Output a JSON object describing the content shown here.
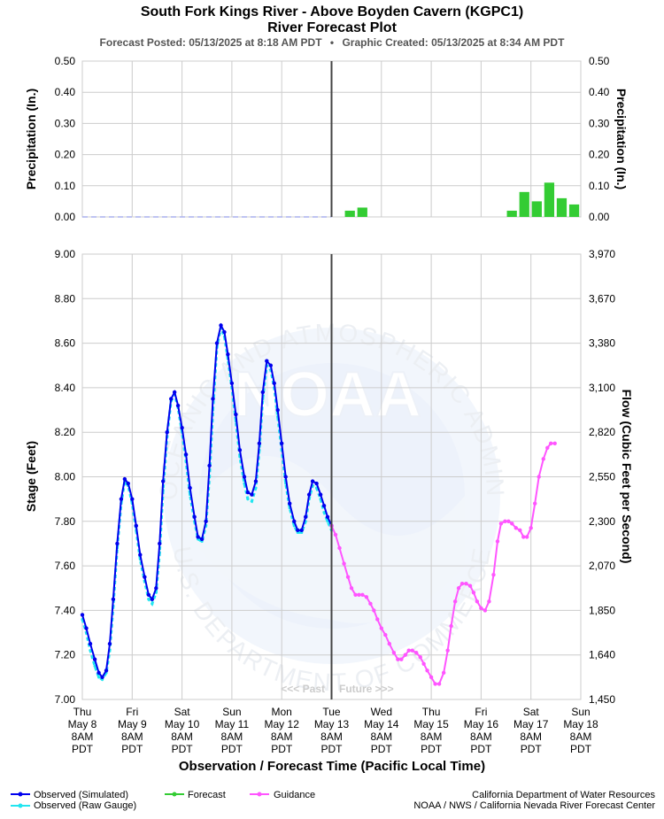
{
  "header": {
    "title": "South Fork Kings River - Above Boyden Cavern (KGPC1)",
    "subtitle": "River Forecast Plot",
    "forecast_posted": "Forecast Posted: 05/13/2025 at 8:18 AM PDT",
    "separator": "•",
    "graphic_created": "Graphic Created: 05/13/2025 at 8:34 AM PDT"
  },
  "x_axis": {
    "title": "Observation / Forecast Time (Pacific Local Time)",
    "ticks": [
      {
        "day": "Thu",
        "date": "May 8",
        "time": "8AM",
        "tz": "PDT"
      },
      {
        "day": "Fri",
        "date": "May 9",
        "time": "8AM",
        "tz": "PDT"
      },
      {
        "day": "Sat",
        "date": "May 10",
        "time": "8AM",
        "tz": "PDT"
      },
      {
        "day": "Sun",
        "date": "May 11",
        "time": "8AM",
        "tz": "PDT"
      },
      {
        "day": "Mon",
        "date": "May 12",
        "time": "8AM",
        "tz": "PDT"
      },
      {
        "day": "Tue",
        "date": "May 13",
        "time": "8AM",
        "tz": "PDT"
      },
      {
        "day": "Wed",
        "date": "May 14",
        "time": "8AM",
        "tz": "PDT"
      },
      {
        "day": "Thu",
        "date": "May 15",
        "time": "8AM",
        "tz": "PDT"
      },
      {
        "day": "Fri",
        "date": "May 16",
        "time": "8AM",
        "tz": "PDT"
      },
      {
        "day": "Sat",
        "date": "May 17",
        "time": "8AM",
        "tz": "PDT"
      },
      {
        "day": "Sun",
        "date": "May 18",
        "time": "8AM",
        "tz": "PDT"
      }
    ]
  },
  "past_future": {
    "past": "<<< Past",
    "future": "Future >>>"
  },
  "legend": {
    "observed_sim": "Observed (Simulated)",
    "observed_raw": "Observed (Raw Gauge)",
    "forecast": "Forecast",
    "guidance": "Guidance",
    "credit_line1": "California Department of Water Resources",
    "credit_line2": "NOAA / NWS / California Nevada River Forecast Center"
  },
  "watermark": {
    "noaa": "NOAA",
    "top_arc": "NATIONAL OCEANIC AND ATMOSPHERIC ADMINISTRATION",
    "bottom_arc": "U.S. DEPARTMENT OF COMMERCE"
  },
  "colors": {
    "observed_sim": "#0000ee",
    "observed_raw": "#22e5f0",
    "forecast": "#33cc33",
    "guidance": "#ff55ff",
    "precip_bar": "#33cc33",
    "grid": "#cccccc",
    "now_line": "#444444"
  },
  "chart_data": [
    {
      "type": "bar",
      "title": "",
      "ylabel": "Precipitation (In.)",
      "y2label": "Precipitation (In.)",
      "ylim": [
        0,
        0.5
      ],
      "yticks": [
        "0.00",
        "0.10",
        "0.20",
        "0.30",
        "0.40",
        "0.50"
      ],
      "x_unit": "days since May 8 8AM PDT",
      "observed_precip": {
        "x_start": 0,
        "x_end": 5,
        "value": 0
      },
      "series": [
        {
          "name": "Forecast",
          "bars": [
            {
              "x": 5.25,
              "value": 0.02
            },
            {
              "x": 5.5,
              "value": 0.03
            },
            {
              "x": 8.5,
              "value": 0.02
            },
            {
              "x": 8.75,
              "value": 0.08
            },
            {
              "x": 9.0,
              "value": 0.05
            },
            {
              "x": 9.25,
              "value": 0.11
            },
            {
              "x": 9.5,
              "value": 0.06
            },
            {
              "x": 9.75,
              "value": 0.04
            }
          ]
        }
      ]
    },
    {
      "type": "line",
      "title": "",
      "xlabel": "Observation / Forecast Time (Pacific Local Time)",
      "ylabel": "Stage (Feet)",
      "y2label": "Flow (Cubic Feet per Second)",
      "ylim": [
        7.0,
        9.0
      ],
      "yticks": [
        "7.00",
        "7.20",
        "7.40",
        "7.60",
        "7.80",
        "8.00",
        "8.20",
        "8.40",
        "8.60",
        "8.80",
        "9.00"
      ],
      "y2ticks": [
        "1,450",
        "1,640",
        "1,850",
        "2,070",
        "2,300",
        "2,550",
        "2,820",
        "3,100",
        "3,380",
        "3,670",
        "3,970"
      ],
      "xlim": [
        0,
        10
      ],
      "x_unit": "days since May 8 8AM PDT",
      "now_x": 5,
      "series": [
        {
          "name": "Observed (Simulated)",
          "points": [
            [
              0.0,
              7.38
            ],
            [
              0.08,
              7.32
            ],
            [
              0.16,
              7.25
            ],
            [
              0.25,
              7.18
            ],
            [
              0.33,
              7.12
            ],
            [
              0.4,
              7.1
            ],
            [
              0.48,
              7.13
            ],
            [
              0.55,
              7.25
            ],
            [
              0.62,
              7.45
            ],
            [
              0.7,
              7.7
            ],
            [
              0.78,
              7.9
            ],
            [
              0.85,
              7.99
            ],
            [
              0.92,
              7.97
            ],
            [
              1.0,
              7.9
            ],
            [
              1.08,
              7.78
            ],
            [
              1.16,
              7.65
            ],
            [
              1.25,
              7.55
            ],
            [
              1.33,
              7.47
            ],
            [
              1.4,
              7.45
            ],
            [
              1.48,
              7.5
            ],
            [
              1.55,
              7.7
            ],
            [
              1.62,
              7.98
            ],
            [
              1.7,
              8.2
            ],
            [
              1.78,
              8.35
            ],
            [
              1.85,
              8.38
            ],
            [
              1.92,
              8.32
            ],
            [
              2.0,
              8.22
            ],
            [
              2.08,
              8.1
            ],
            [
              2.16,
              7.95
            ],
            [
              2.25,
              7.82
            ],
            [
              2.32,
              7.73
            ],
            [
              2.4,
              7.72
            ],
            [
              2.48,
              7.8
            ],
            [
              2.55,
              8.05
            ],
            [
              2.62,
              8.35
            ],
            [
              2.7,
              8.6
            ],
            [
              2.78,
              8.68
            ],
            [
              2.85,
              8.65
            ],
            [
              2.92,
              8.55
            ],
            [
              3.0,
              8.42
            ],
            [
              3.08,
              8.28
            ],
            [
              3.16,
              8.12
            ],
            [
              3.25,
              8.0
            ],
            [
              3.32,
              7.93
            ],
            [
              3.4,
              7.92
            ],
            [
              3.48,
              7.98
            ],
            [
              3.55,
              8.15
            ],
            [
              3.62,
              8.38
            ],
            [
              3.7,
              8.52
            ],
            [
              3.78,
              8.5
            ],
            [
              3.85,
              8.42
            ],
            [
              3.92,
              8.3
            ],
            [
              4.0,
              8.15
            ],
            [
              4.08,
              8.0
            ],
            [
              4.16,
              7.88
            ],
            [
              4.25,
              7.8
            ],
            [
              4.32,
              7.76
            ],
            [
              4.4,
              7.76
            ],
            [
              4.48,
              7.82
            ],
            [
              4.55,
              7.92
            ],
            [
              4.62,
              7.98
            ],
            [
              4.7,
              7.97
            ],
            [
              4.78,
              7.92
            ],
            [
              4.85,
              7.87
            ],
            [
              4.92,
              7.82
            ],
            [
              5.0,
              7.78
            ]
          ]
        },
        {
          "name": "Observed (Raw Gauge)",
          "points": [
            [
              0.0,
              7.36
            ],
            [
              0.08,
              7.3
            ],
            [
              0.16,
              7.22
            ],
            [
              0.25,
              7.15
            ],
            [
              0.33,
              7.1
            ],
            [
              0.4,
              7.09
            ],
            [
              0.48,
              7.12
            ],
            [
              0.55,
              7.22
            ],
            [
              0.62,
              7.42
            ],
            [
              0.7,
              7.68
            ],
            [
              0.78,
              7.88
            ],
            [
              0.85,
              7.98
            ],
            [
              0.92,
              7.96
            ],
            [
              1.0,
              7.88
            ],
            [
              1.08,
              7.76
            ],
            [
              1.16,
              7.63
            ],
            [
              1.25,
              7.53
            ],
            [
              1.33,
              7.45
            ],
            [
              1.4,
              7.43
            ],
            [
              1.48,
              7.48
            ],
            [
              1.55,
              7.66
            ],
            [
              1.62,
              7.94
            ],
            [
              1.7,
              8.18
            ],
            [
              1.78,
              8.34
            ],
            [
              1.85,
              8.37
            ],
            [
              1.92,
              8.31
            ],
            [
              2.0,
              8.2
            ],
            [
              2.08,
              8.07
            ],
            [
              2.16,
              7.92
            ],
            [
              2.25,
              7.8
            ],
            [
              2.32,
              7.72
            ],
            [
              2.4,
              7.71
            ],
            [
              2.48,
              7.78
            ],
            [
              2.55,
              8.0
            ],
            [
              2.62,
              8.3
            ],
            [
              2.7,
              8.58
            ],
            [
              2.78,
              8.67
            ],
            [
              2.85,
              8.63
            ],
            [
              2.92,
              8.53
            ],
            [
              3.0,
              8.4
            ],
            [
              3.08,
              8.25
            ],
            [
              3.16,
              8.09
            ],
            [
              3.25,
              7.97
            ],
            [
              3.32,
              7.9
            ],
            [
              3.4,
              7.89
            ],
            [
              3.48,
              7.95
            ],
            [
              3.55,
              8.12
            ],
            [
              3.62,
              8.35
            ],
            [
              3.7,
              8.5
            ],
            [
              3.78,
              8.48
            ],
            [
              3.85,
              8.4
            ],
            [
              3.92,
              8.27
            ],
            [
              4.0,
              8.12
            ],
            [
              4.08,
              7.97
            ],
            [
              4.16,
              7.86
            ],
            [
              4.25,
              7.78
            ],
            [
              4.32,
              7.75
            ],
            [
              4.4,
              7.75
            ],
            [
              4.48,
              7.8
            ],
            [
              4.55,
              7.9
            ],
            [
              4.62,
              7.96
            ],
            [
              4.7,
              7.95
            ],
            [
              4.78,
              7.9
            ],
            [
              4.85,
              7.84
            ],
            [
              4.92,
              7.8
            ],
            [
              5.0,
              7.76
            ]
          ]
        },
        {
          "name": "Guidance",
          "points": [
            [
              5.0,
              7.78
            ],
            [
              5.08,
              7.74
            ],
            [
              5.16,
              7.68
            ],
            [
              5.25,
              7.61
            ],
            [
              5.33,
              7.55
            ],
            [
              5.4,
              7.5
            ],
            [
              5.48,
              7.47
            ],
            [
              5.55,
              7.47
            ],
            [
              5.62,
              7.47
            ],
            [
              5.7,
              7.46
            ],
            [
              5.78,
              7.43
            ],
            [
              5.85,
              7.4
            ],
            [
              5.92,
              7.36
            ],
            [
              6.0,
              7.32
            ],
            [
              6.08,
              7.29
            ],
            [
              6.16,
              7.25
            ],
            [
              6.25,
              7.21
            ],
            [
              6.33,
              7.18
            ],
            [
              6.4,
              7.18
            ],
            [
              6.48,
              7.2
            ],
            [
              6.55,
              7.22
            ],
            [
              6.62,
              7.22
            ],
            [
              6.7,
              7.21
            ],
            [
              6.78,
              7.19
            ],
            [
              6.85,
              7.16
            ],
            [
              6.92,
              7.13
            ],
            [
              7.0,
              7.1
            ],
            [
              7.08,
              7.07
            ],
            [
              7.16,
              7.07
            ],
            [
              7.25,
              7.12
            ],
            [
              7.33,
              7.22
            ],
            [
              7.4,
              7.33
            ],
            [
              7.48,
              7.44
            ],
            [
              7.55,
              7.5
            ],
            [
              7.62,
              7.52
            ],
            [
              7.7,
              7.52
            ],
            [
              7.78,
              7.51
            ],
            [
              7.85,
              7.48
            ],
            [
              7.92,
              7.44
            ],
            [
              8.0,
              7.41
            ],
            [
              8.08,
              7.4
            ],
            [
              8.16,
              7.44
            ],
            [
              8.25,
              7.56
            ],
            [
              8.33,
              7.71
            ],
            [
              8.4,
              7.79
            ],
            [
              8.48,
              7.8
            ],
            [
              8.55,
              7.8
            ],
            [
              8.62,
              7.79
            ],
            [
              8.7,
              7.77
            ],
            [
              8.78,
              7.76
            ],
            [
              8.85,
              7.73
            ],
            [
              8.92,
              7.73
            ],
            [
              9.0,
              7.77
            ],
            [
              9.08,
              7.88
            ],
            [
              9.16,
              8.0
            ],
            [
              9.25,
              8.08
            ],
            [
              9.33,
              8.13
            ],
            [
              9.4,
              8.15
            ],
            [
              9.48,
              8.15
            ]
          ]
        }
      ]
    }
  ]
}
